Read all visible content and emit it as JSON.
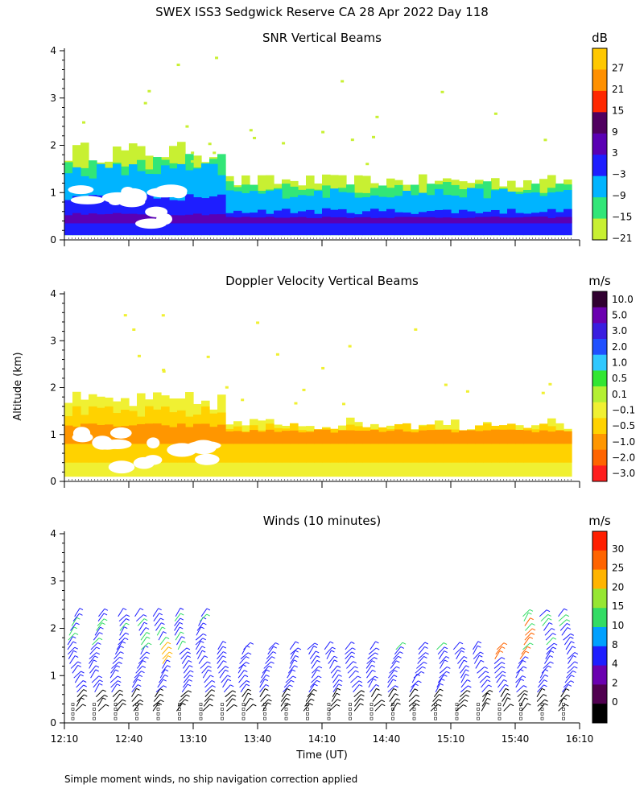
{
  "header": {
    "title": "SWEX ISS3 Sedgwick Reserve CA  28 Apr 2022 Day 118"
  },
  "footer": {
    "note": "Simple moment winds, no ship navigation correction applied"
  },
  "axes": {
    "ylabel": "Altitude (km)",
    "xlabel": "Time (UT)",
    "y_ticks": [
      "0",
      "1",
      "2",
      "3",
      "4"
    ],
    "y_range": [
      0,
      4
    ],
    "x_ticks": [
      "12:10",
      "12:40",
      "13:10",
      "13:40",
      "14:10",
      "14:40",
      "15:10",
      "15:40",
      "16:10"
    ]
  },
  "chart_data": [
    {
      "type": "heatmap",
      "title": "SNR Vertical Beams",
      "colorbar_unit": "dB",
      "colorbar_labels": [
        "27",
        "21",
        "15",
        "9",
        "3",
        "−3",
        "−9",
        "−15",
        "−21"
      ],
      "colorbar_colors": [
        "#ffc800",
        "#ff9000",
        "#ff2800",
        "#500060",
        "#5a00b4",
        "#1e1eff",
        "#00b4ff",
        "#32e678",
        "#c8f032"
      ],
      "x_range": [
        "12:10",
        "16:10"
      ],
      "y_range": [
        0,
        4
      ]
    },
    {
      "type": "heatmap",
      "title": "Doppler Velocity Vertical Beams",
      "colorbar_unit": "m/s",
      "colorbar_labels": [
        "10.0",
        "5.0",
        "3.0",
        "2.0",
        "1.0",
        "0.5",
        "0.1",
        "−0.1",
        "−0.5",
        "−1.0",
        "−2.0",
        "−3.0"
      ],
      "colorbar_colors": [
        "#300030",
        "#6a00b0",
        "#3a1ee0",
        "#2050ff",
        "#30c8ff",
        "#32e632",
        "#b4f032",
        "#f0f032",
        "#ffd200",
        "#ff9600",
        "#ff6400",
        "#ff1e1e"
      ],
      "x_range": [
        "12:10",
        "16:10"
      ],
      "y_range": [
        0,
        4
      ]
    },
    {
      "type": "scatter",
      "title": "Winds (10 minutes)",
      "colorbar_unit": "m/s",
      "colorbar_labels": [
        "30",
        "25",
        "20",
        "15",
        "10",
        "8",
        "4",
        "2",
        "0"
      ],
      "colorbar_colors": [
        "#ff1e00",
        "#ff6400",
        "#ffb400",
        "#96e632",
        "#32dc64",
        "#00a0ff",
        "#1e1eff",
        "#6a00b0",
        "#500050",
        "#000000"
      ],
      "x_range": [
        "12:10",
        "16:10"
      ],
      "y_range": [
        0,
        4
      ]
    }
  ]
}
